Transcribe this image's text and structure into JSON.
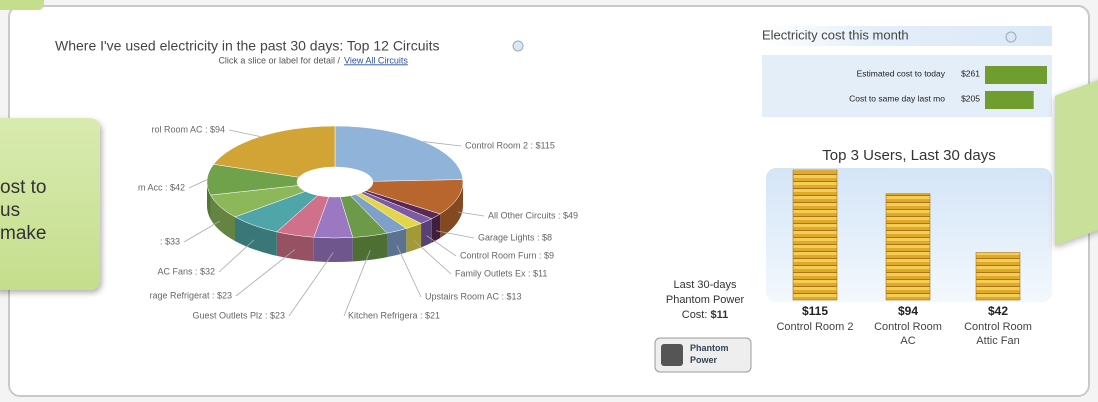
{
  "callout": {
    "lines": [
      "ost to",
      "us",
      "make"
    ]
  },
  "chart_data": [
    {
      "type": "pie",
      "title": "Where I've used electricity in the past 30 days: Top 12 Circuits",
      "subtitle": "Click a slice or label for detail /",
      "link": "View All Circuits",
      "categories": [
        "Control Room 2 : $115",
        "All Other Circuits : $49",
        "Garage Lights : $8",
        "Control Room Furn : $9",
        "Family Outlets Ex : $11",
        "Upstairs Room AC : $13",
        "Kitchen Refrigera : $21",
        "Guest Outlets Plz : $23",
        "rage Refrigerat : $23",
        "AC Fans : $32",
        ": $33",
        "m Acc : $42",
        "rol Room AC : $94"
      ],
      "values": [
        115,
        49,
        8,
        9,
        11,
        13,
        21,
        23,
        23,
        32,
        33,
        42,
        94
      ],
      "colors": [
        "#8fb3d9",
        "#b8652e",
        "#5a2a55",
        "#7b5aa6",
        "#e3d64a",
        "#7fa0c8",
        "#6c9a48",
        "#9a78c2",
        "#d0708a",
        "#4fa5a8",
        "#8db85a",
        "#6fa24a",
        "#d2a435"
      ]
    },
    {
      "type": "hbar",
      "title": "Electricity cost this month",
      "categories": [
        "Estimated cost to today",
        "Cost to same day last mo"
      ],
      "values": [
        261,
        205
      ],
      "value_labels": [
        "$261",
        "$205"
      ],
      "color": "#6f9e2e"
    },
    {
      "type": "coins",
      "title": "Top 3 Users, Last 30 days",
      "categories": [
        "Control Room 2",
        "Control Room AC",
        "Control Room Attic Fan"
      ],
      "values": [
        115,
        94,
        42
      ],
      "value_labels": [
        "$115",
        "$94",
        "$42"
      ]
    }
  ],
  "phantom": {
    "text": "Last 30-days Phantom Power Cost:",
    "value_label": "$11",
    "button": "Phantom Power"
  }
}
